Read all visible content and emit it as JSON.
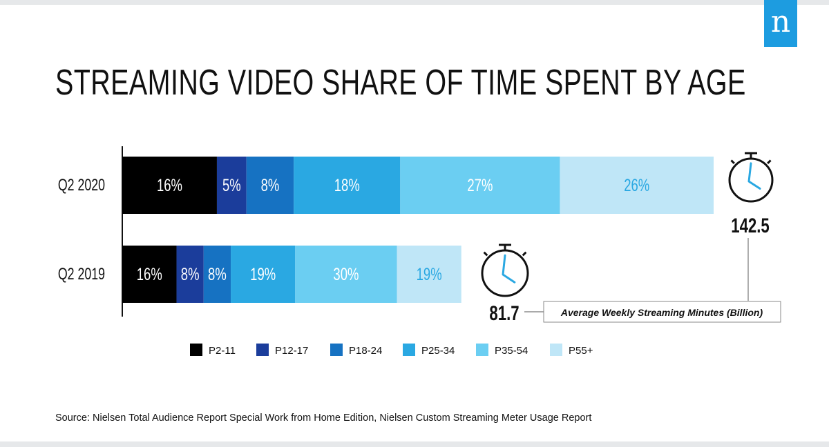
{
  "logo": {
    "letter": "n"
  },
  "chart_data": {
    "type": "bar",
    "orientation": "horizontal",
    "stacked": true,
    "title": "STREAMING VIDEO SHARE OF TIME SPENT BY AGE",
    "categories": [
      "Q2 2020",
      "Q2 2019"
    ],
    "series": [
      {
        "name": "P2-11",
        "color": "#000000",
        "label_color": "#ffffff",
        "values": [
          16,
          16
        ]
      },
      {
        "name": "P12-17",
        "color": "#1b3d9b",
        "label_color": "#ffffff",
        "values": [
          5,
          8
        ]
      },
      {
        "name": "P18-24",
        "color": "#1672c2",
        "label_color": "#ffffff",
        "values": [
          8,
          8
        ]
      },
      {
        "name": "P25-34",
        "color": "#2aa8e2",
        "label_color": "#ffffff",
        "values": [
          18,
          19
        ]
      },
      {
        "name": "P35-54",
        "color": "#6bcef2",
        "label_color": "#ffffff",
        "values": [
          27,
          30
        ]
      },
      {
        "name": "P55+",
        "color": "#bfe6f7",
        "label_color": "#2aa8e2",
        "values": [
          26,
          19
        ]
      }
    ],
    "value_suffix": "%",
    "totals": [
      {
        "category": "Q2 2020",
        "value": "142.5"
      },
      {
        "category": "Q2 2019",
        "value": "81.7"
      }
    ],
    "total_minutes": [
      142.5,
      81.7
    ],
    "totals_label": "Average Weekly Streaming Minutes (Billion)",
    "legend_position": "bottom"
  },
  "source": "Source: Nielsen Total Audience Report Special Work from Home Edition, Nielsen Custom Streaming Meter Usage Report"
}
